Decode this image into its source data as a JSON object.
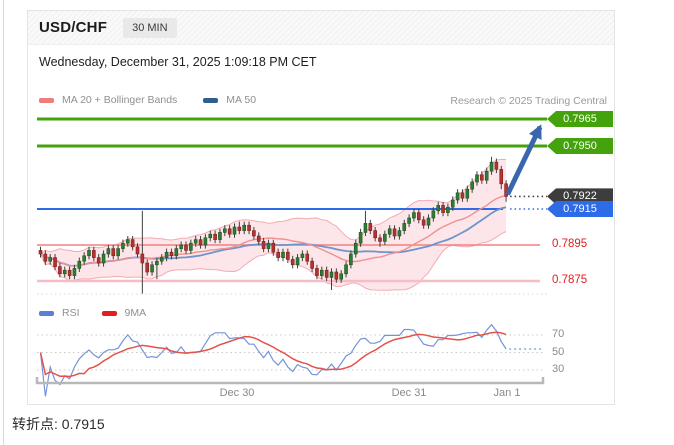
{
  "card": {
    "symbol": "USD/CHF",
    "timeframe": "30 MIN",
    "datetime": "Wednesday, December 31, 2025 1:09:18 PM CET",
    "research_credit": "Research © 2025 Trading Central",
    "legend_main": [
      {
        "label": "MA 20 + Bollinger Bands",
        "color": "#ee7d7d"
      },
      {
        "label": "MA 50",
        "color": "#2d5f8e"
      }
    ],
    "legend_rsi": [
      {
        "label": "RSI",
        "color": "#5b7fd4"
      },
      {
        "label": "9MA",
        "color": "#e02020"
      }
    ]
  },
  "footer": {
    "pivot_text": "转折点: 0.7915"
  },
  "chart_data": {
    "type": "candlestick",
    "instrument": "USD/CHF",
    "interval": "30 MIN",
    "x_axis": {
      "labels": [
        "Dec 30",
        "Dec 31",
        "Jan 1"
      ]
    },
    "price_levels": [
      {
        "value": "0.7965",
        "price": 0.7965,
        "role": "resistance-target",
        "line_color": "#44a30c",
        "label_bg": "#44a30c",
        "label_text": "#ffffff",
        "style": "solid-thick"
      },
      {
        "value": "0.7950",
        "price": 0.795,
        "role": "resistance",
        "line_color": "#44a30c",
        "label_bg": "#44a30c",
        "label_text": "#ffffff",
        "style": "solid-thick"
      },
      {
        "value": "0.7922",
        "price": 0.7922,
        "role": "last-price",
        "line_color": "#3d3d3d",
        "label_bg": "#3d3d3d",
        "label_text": "#ffffff",
        "style": "dotted-right"
      },
      {
        "value": "0.7915",
        "price": 0.7915,
        "role": "pivot",
        "line_color": "#2e6be6",
        "label_bg": "#2e6be6",
        "label_text": "#ffffff",
        "style": "solid-then-dotted"
      },
      {
        "value": "0.7895",
        "price": 0.7895,
        "role": "support",
        "line_color": "#f08080",
        "label_bg": null,
        "label_text": "#e01f1f",
        "style": "solid-thin"
      },
      {
        "value": "0.7875",
        "price": 0.7875,
        "role": "support",
        "line_color": "#f6bdc5",
        "label_bg": null,
        "label_text": "#e01f1f",
        "style": "solid-light"
      }
    ],
    "indicators": {
      "bollinger_fill": "rgba(248,178,188,0.32)",
      "bollinger_edge": "rgba(242,158,168,0.85)",
      "ma20_color": "#f09090",
      "ma50_color": "#6e93cf",
      "candle_up": "#2e7d32",
      "candle_down": "#b63230",
      "wick_color": "#3f3f3f"
    },
    "candles_ohlc": [
      [
        0.7892,
        0.7894,
        0.7888,
        0.789
      ],
      [
        0.789,
        0.7892,
        0.7884,
        0.7886
      ],
      [
        0.7886,
        0.789,
        0.7884,
        0.7888
      ],
      [
        0.7888,
        0.789,
        0.7881,
        0.7883
      ],
      [
        0.7883,
        0.7885,
        0.7877,
        0.7879
      ],
      [
        0.7879,
        0.7883,
        0.7877,
        0.7881
      ],
      [
        0.7881,
        0.7883,
        0.7876,
        0.7878
      ],
      [
        0.7878,
        0.7884,
        0.7876,
        0.7882
      ],
      [
        0.7882,
        0.7888,
        0.788,
        0.7886
      ],
      [
        0.7886,
        0.7891,
        0.7884,
        0.7889
      ],
      [
        0.7889,
        0.7894,
        0.7887,
        0.7892
      ],
      [
        0.7892,
        0.7894,
        0.7886,
        0.7888
      ],
      [
        0.7888,
        0.789,
        0.7883,
        0.7885
      ],
      [
        0.7885,
        0.7892,
        0.7883,
        0.789
      ],
      [
        0.789,
        0.7895,
        0.7888,
        0.7893
      ],
      [
        0.7893,
        0.7895,
        0.7887,
        0.7889
      ],
      [
        0.7889,
        0.7895,
        0.7887,
        0.7893
      ],
      [
        0.7893,
        0.7898,
        0.7891,
        0.7896
      ],
      [
        0.7896,
        0.79,
        0.7894,
        0.7898
      ],
      [
        0.7898,
        0.79,
        0.7892,
        0.7894
      ],
      [
        0.7894,
        0.7896,
        0.7888,
        0.789
      ],
      [
        0.789,
        0.7914,
        0.7868,
        0.7885
      ],
      [
        0.7885,
        0.7887,
        0.7878,
        0.788
      ],
      [
        0.788,
        0.7886,
        0.7878,
        0.7884
      ],
      [
        0.7884,
        0.7888,
        0.7876,
        0.7886
      ],
      [
        0.7886,
        0.789,
        0.7884,
        0.7888
      ],
      [
        0.7888,
        0.7893,
        0.7886,
        0.7891
      ],
      [
        0.7891,
        0.7893,
        0.7887,
        0.7889
      ],
      [
        0.7889,
        0.7895,
        0.7887,
        0.7893
      ],
      [
        0.7893,
        0.7897,
        0.7891,
        0.7895
      ],
      [
        0.7895,
        0.7897,
        0.789,
        0.7892
      ],
      [
        0.7892,
        0.7898,
        0.789,
        0.7896
      ],
      [
        0.7896,
        0.79,
        0.7894,
        0.7898
      ],
      [
        0.7898,
        0.79,
        0.7893,
        0.7895
      ],
      [
        0.7895,
        0.7901,
        0.7893,
        0.7899
      ],
      [
        0.7899,
        0.7903,
        0.7897,
        0.7901
      ],
      [
        0.7901,
        0.7903,
        0.7896,
        0.7898
      ],
      [
        0.7898,
        0.7904,
        0.7896,
        0.7902
      ],
      [
        0.7902,
        0.7906,
        0.79,
        0.7904
      ],
      [
        0.7904,
        0.7906,
        0.7899,
        0.7901
      ],
      [
        0.7901,
        0.7907,
        0.7899,
        0.7905
      ],
      [
        0.7905,
        0.7908,
        0.7901,
        0.7903
      ],
      [
        0.7903,
        0.7908,
        0.7901,
        0.7906
      ],
      [
        0.7906,
        0.7908,
        0.7901,
        0.7903
      ],
      [
        0.7903,
        0.7905,
        0.7898,
        0.79
      ],
      [
        0.79,
        0.7902,
        0.7895,
        0.7897
      ],
      [
        0.7897,
        0.7899,
        0.7891,
        0.7893
      ],
      [
        0.7893,
        0.7898,
        0.7891,
        0.7896
      ],
      [
        0.7896,
        0.7898,
        0.7889,
        0.7891
      ],
      [
        0.7891,
        0.7893,
        0.7886,
        0.7888
      ],
      [
        0.7888,
        0.7893,
        0.7886,
        0.7891
      ],
      [
        0.7891,
        0.7893,
        0.7885,
        0.7887
      ],
      [
        0.7887,
        0.7889,
        0.7882,
        0.7884
      ],
      [
        0.7884,
        0.789,
        0.7882,
        0.7888
      ],
      [
        0.7888,
        0.7892,
        0.7886,
        0.789
      ],
      [
        0.789,
        0.7892,
        0.7884,
        0.7886
      ],
      [
        0.7886,
        0.7888,
        0.788,
        0.7882
      ],
      [
        0.7882,
        0.7884,
        0.7876,
        0.7878
      ],
      [
        0.7878,
        0.7883,
        0.7876,
        0.7881
      ],
      [
        0.7881,
        0.7883,
        0.7875,
        0.7877
      ],
      [
        0.7877,
        0.7882,
        0.787,
        0.788
      ],
      [
        0.788,
        0.7882,
        0.7874,
        0.7876
      ],
      [
        0.7876,
        0.7881,
        0.7874,
        0.7879
      ],
      [
        0.7879,
        0.7886,
        0.7877,
        0.7884
      ],
      [
        0.7884,
        0.7892,
        0.7882,
        0.789
      ],
      [
        0.789,
        0.7898,
        0.7888,
        0.7896
      ],
      [
        0.7896,
        0.7904,
        0.7894,
        0.7902
      ],
      [
        0.7902,
        0.7914,
        0.79,
        0.7907
      ],
      [
        0.7907,
        0.7909,
        0.7901,
        0.7903
      ],
      [
        0.7903,
        0.7905,
        0.7897,
        0.7899
      ],
      [
        0.7899,
        0.7901,
        0.7894,
        0.7897
      ],
      [
        0.7897,
        0.7903,
        0.7895,
        0.7901
      ],
      [
        0.7901,
        0.7906,
        0.7899,
        0.7904
      ],
      [
        0.7904,
        0.7906,
        0.7898,
        0.79
      ],
      [
        0.79,
        0.7905,
        0.7898,
        0.7903
      ],
      [
        0.7903,
        0.7909,
        0.7901,
        0.7907
      ],
      [
        0.7907,
        0.7912,
        0.7905,
        0.791
      ],
      [
        0.791,
        0.7915,
        0.7908,
        0.7913
      ],
      [
        0.7913,
        0.7915,
        0.7907,
        0.7909
      ],
      [
        0.7909,
        0.7911,
        0.7904,
        0.7906
      ],
      [
        0.7906,
        0.7912,
        0.7904,
        0.791
      ],
      [
        0.791,
        0.7916,
        0.7908,
        0.7914
      ],
      [
        0.7914,
        0.7919,
        0.7912,
        0.7917
      ],
      [
        0.7917,
        0.7919,
        0.7911,
        0.7913
      ],
      [
        0.7913,
        0.7918,
        0.7911,
        0.7916
      ],
      [
        0.7916,
        0.7922,
        0.7914,
        0.792
      ],
      [
        0.792,
        0.7926,
        0.7918,
        0.7924
      ],
      [
        0.7924,
        0.7926,
        0.7919,
        0.7921
      ],
      [
        0.7921,
        0.7928,
        0.7919,
        0.7926
      ],
      [
        0.7926,
        0.7932,
        0.7924,
        0.793
      ],
      [
        0.793,
        0.7936,
        0.7928,
        0.7934
      ],
      [
        0.7934,
        0.7936,
        0.7929,
        0.7931
      ],
      [
        0.7931,
        0.7938,
        0.7929,
        0.7936
      ],
      [
        0.7936,
        0.7944,
        0.7934,
        0.7941
      ],
      [
        0.7941,
        0.7943,
        0.7935,
        0.7937
      ],
      [
        0.7937,
        0.7939,
        0.7926,
        0.7929
      ],
      [
        0.7929,
        0.7931,
        0.7919,
        0.7922
      ]
    ],
    "rsi_panel": {
      "gridlines": [
        70,
        50,
        30
      ],
      "series": [
        "RSI",
        "9MA"
      ],
      "rsi_color": "#7593dc",
      "ma9_color": "#e4524a",
      "end_projection_dotted": true
    },
    "arrow": {
      "direction": "up",
      "from_price": 0.7922,
      "to_price": 0.7965,
      "color": "#3a66ad"
    }
  }
}
